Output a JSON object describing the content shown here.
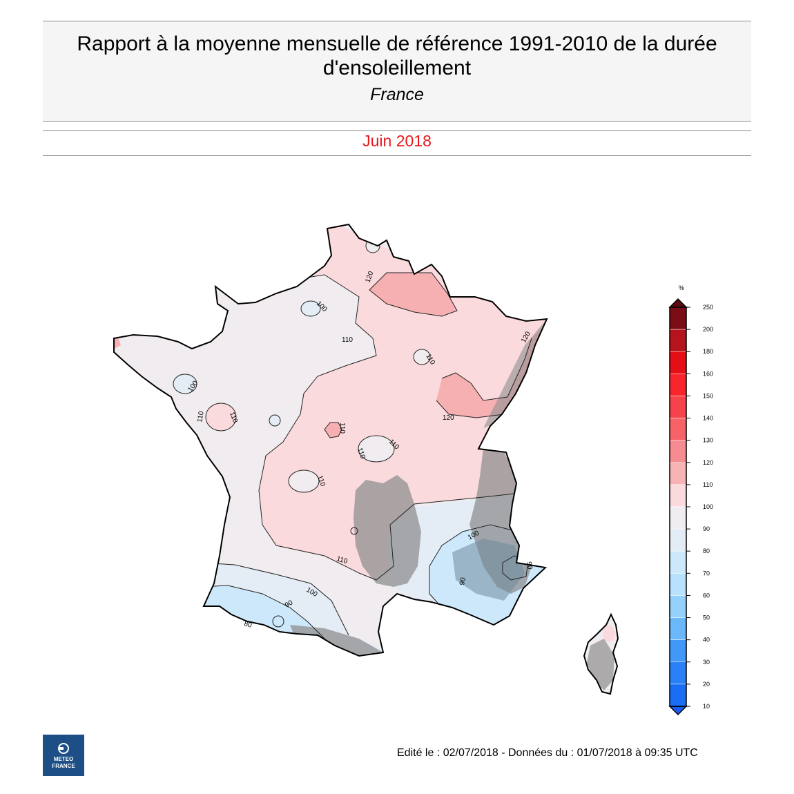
{
  "header": {
    "title_line1": "Rapport à la moyenne mensuelle de référence 1991-2010 de la durée",
    "title_line2": "d'ensoleillement",
    "subtitle": "France",
    "month": "Juin 2018"
  },
  "colors": {
    "title_bg": "#f5f5f5",
    "month_text": "#e8161b",
    "logo_bg": "#1d4f86",
    "land_low": "#f0ecef",
    "land_110_120": "#fadadd",
    "land_120_130": "#f7b0b2",
    "land_90_100": "#e4ecf5",
    "land_80_90": "#cde8fa",
    "relief": "#8f8f8f"
  },
  "legend": {
    "unit": "%",
    "levels": [
      "250",
      "200",
      "180",
      "160",
      "150",
      "140",
      "130",
      "120",
      "110",
      "100",
      "90",
      "80",
      "70",
      "60",
      "50",
      "40",
      "30",
      "20",
      "10"
    ],
    "band_colors": [
      "#7a0d16",
      "#b5141c",
      "#e30f14",
      "#f8262b",
      "#f6434b",
      "#f56369",
      "#f58c91",
      "#f8b3b5",
      "#fadadd",
      "#f0ecef",
      "#e4ecf5",
      "#cde8fa",
      "#b7e1fc",
      "#93d0fb",
      "#6ab7f9",
      "#4298f7",
      "#2a80f5",
      "#1a6ef4"
    ],
    "top_arrow_color": "#5a0a0e",
    "bottom_arrow_color": "#1a5cf0"
  },
  "map": {
    "contour_labels": [
      "120",
      "100",
      "110",
      "110",
      "120",
      "100",
      "110",
      "110",
      "120",
      "110",
      "110",
      "110",
      "110",
      "110",
      "100",
      "90",
      "90",
      "100",
      "90",
      "80",
      "120"
    ]
  },
  "footer": {
    "edition": "Edité le : 02/07/2018 - Données du : 01/07/2018 à 09:35 UTC"
  },
  "logo": {
    "line1": "METEO",
    "line2": "FRANCE"
  }
}
